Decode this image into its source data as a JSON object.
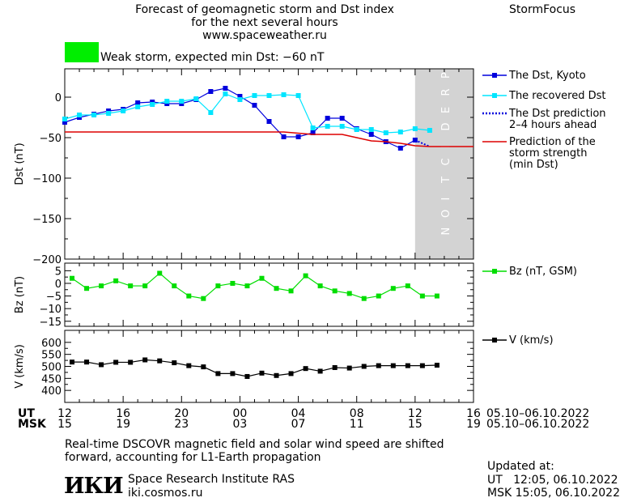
{
  "header": {
    "title_line1": "Forecast of geomagnetic storm and Dst index",
    "title_line2": "for the next several hours",
    "website": "www.spaceweather.ru",
    "brand": "StormFocus"
  },
  "storm_status": {
    "label": "Weak storm, expected min Dst: −60 nT",
    "color": "#00ee00"
  },
  "prediction_zone_label": "PREDICTION",
  "time_axis": {
    "ut_label": "UT",
    "msk_label": "MSK",
    "ut_ticks": [
      "12",
      "16",
      "20",
      "00",
      "04",
      "08",
      "12",
      "16"
    ],
    "msk_ticks": [
      "15",
      "19",
      "23",
      "03",
      "07",
      "11",
      "15",
      "19"
    ],
    "date_range_ut": "05.10–06.10.2022",
    "date_range_msk": "05.10–06.10.2022"
  },
  "footer": {
    "note_line1": "Real-time DSCOVR magnetic field and solar wind speed are shifted",
    "note_line2": "forward, accounting for L1-Earth propagation",
    "institute_logo_text": "ИКИ",
    "institute_name": "Space Research Institute RAS",
    "institute_url": "iki.cosmos.ru",
    "updated_label": "Updated at:",
    "updated_ut": "UT   12:05, 06.10.2022",
    "updated_msk": "MSK 15:05, 06.10.2022"
  },
  "chart_data": [
    {
      "type": "line",
      "ylabel": "Dst (nT)",
      "ylim": [
        -200,
        35
      ],
      "xlim": [
        12,
        40
      ],
      "yticks": [
        0,
        -50,
        -100,
        -150,
        -200
      ],
      "ytick_labels": [
        "0",
        "−50",
        "−100",
        "−150",
        "−200"
      ],
      "prediction_start_x": 36,
      "series": [
        {
          "name": "The Dst, Kyoto",
          "color": "#0000dd",
          "marker": "square",
          "x": [
            12,
            13,
            14,
            15,
            16,
            17,
            18,
            19,
            20,
            21,
            22,
            23,
            24,
            25,
            26,
            27,
            28,
            29,
            30,
            31,
            32,
            33,
            34,
            35,
            36
          ],
          "y": [
            -31,
            -25,
            -21,
            -17,
            -15,
            -7,
            -6,
            -8,
            -8,
            -3,
            7,
            11,
            1,
            -10,
            -30,
            -49,
            -49,
            -44,
            -26,
            -26,
            -39,
            -46,
            -55,
            -63,
            -53
          ]
        },
        {
          "name": "The recovered Dst",
          "color": "#00e5ff",
          "marker": "square",
          "x": [
            12,
            13,
            14,
            15,
            16,
            17,
            18,
            19,
            20,
            21,
            22,
            23,
            24,
            25,
            26,
            27,
            28,
            29,
            30,
            31,
            32,
            33,
            34,
            35,
            36,
            37
          ],
          "y": [
            -27,
            -22,
            -22,
            -20,
            -17,
            -12,
            -9,
            -5,
            -5,
            -2,
            -19,
            4,
            -3,
            2,
            2,
            3,
            2,
            -38,
            -36,
            -36,
            -40,
            -40,
            -44,
            -43,
            -39,
            -41
          ]
        },
        {
          "name": "The Dst prediction\n2–4 hours ahead",
          "color": "#0000dd",
          "dash": true,
          "x": [
            36,
            37
          ],
          "y": [
            -53,
            -61
          ]
        },
        {
          "name": "Prediction of the\nstorm strength\n(min Dst)",
          "color": "#dd0000",
          "x": [
            12,
            27,
            29,
            31,
            32,
            33,
            34,
            35,
            36,
            37,
            40
          ],
          "y": [
            -43,
            -43,
            -46,
            -46,
            -50,
            -54,
            -55,
            -57,
            -60,
            -61,
            -61
          ]
        }
      ]
    },
    {
      "type": "line",
      "ylabel": "Bz (nT)",
      "ylim": [
        -17,
        8
      ],
      "xlim": [
        12,
        40
      ],
      "yticks": [
        5,
        0,
        -5,
        -10,
        -15
      ],
      "ytick_labels": [
        "5",
        "0",
        "−5",
        "−10",
        "−15"
      ],
      "series": [
        {
          "name": "Bz (nT, GSM)",
          "color": "#00dd00",
          "marker": "square",
          "x": [
            12.5,
            13.5,
            14.5,
            15.5,
            16.5,
            17.5,
            18.5,
            19.5,
            20.5,
            21.5,
            22.5,
            23.5,
            24.5,
            25.5,
            26.5,
            27.5,
            28.5,
            29.5,
            30.5,
            31.5,
            32.5,
            33.5,
            34.5,
            35.5,
            36.5,
            37.5
          ],
          "y": [
            2,
            -2,
            -1,
            1,
            -1,
            -1,
            4,
            -1,
            -5,
            -6,
            -1,
            0,
            -1,
            2,
            -2,
            -3,
            3,
            -1,
            -3,
            -4,
            -6,
            -5,
            -2,
            -1,
            -5,
            -5
          ]
        }
      ]
    },
    {
      "type": "line",
      "ylabel": "V (km/s)",
      "ylim": [
        350,
        650
      ],
      "xlim": [
        12,
        40
      ],
      "yticks": [
        600,
        550,
        500,
        450,
        400
      ],
      "ytick_labels": [
        "600",
        "550",
        "500",
        "450",
        "400"
      ],
      "series": [
        {
          "name": "V (km/s)",
          "color": "#000000",
          "marker": "square",
          "x": [
            12.5,
            13.5,
            14.5,
            15.5,
            16.5,
            17.5,
            18.5,
            19.5,
            20.5,
            21.5,
            22.5,
            23.5,
            24.5,
            25.5,
            26.5,
            27.5,
            28.5,
            29.5,
            30.5,
            31.5,
            32.5,
            33.5,
            34.5,
            35.5,
            36.5,
            37.5
          ],
          "y": [
            518,
            518,
            507,
            517,
            517,
            527,
            523,
            515,
            503,
            498,
            470,
            470,
            458,
            472,
            462,
            470,
            491,
            480,
            495,
            493,
            500,
            503,
            503,
            503,
            503,
            505
          ]
        }
      ]
    }
  ]
}
